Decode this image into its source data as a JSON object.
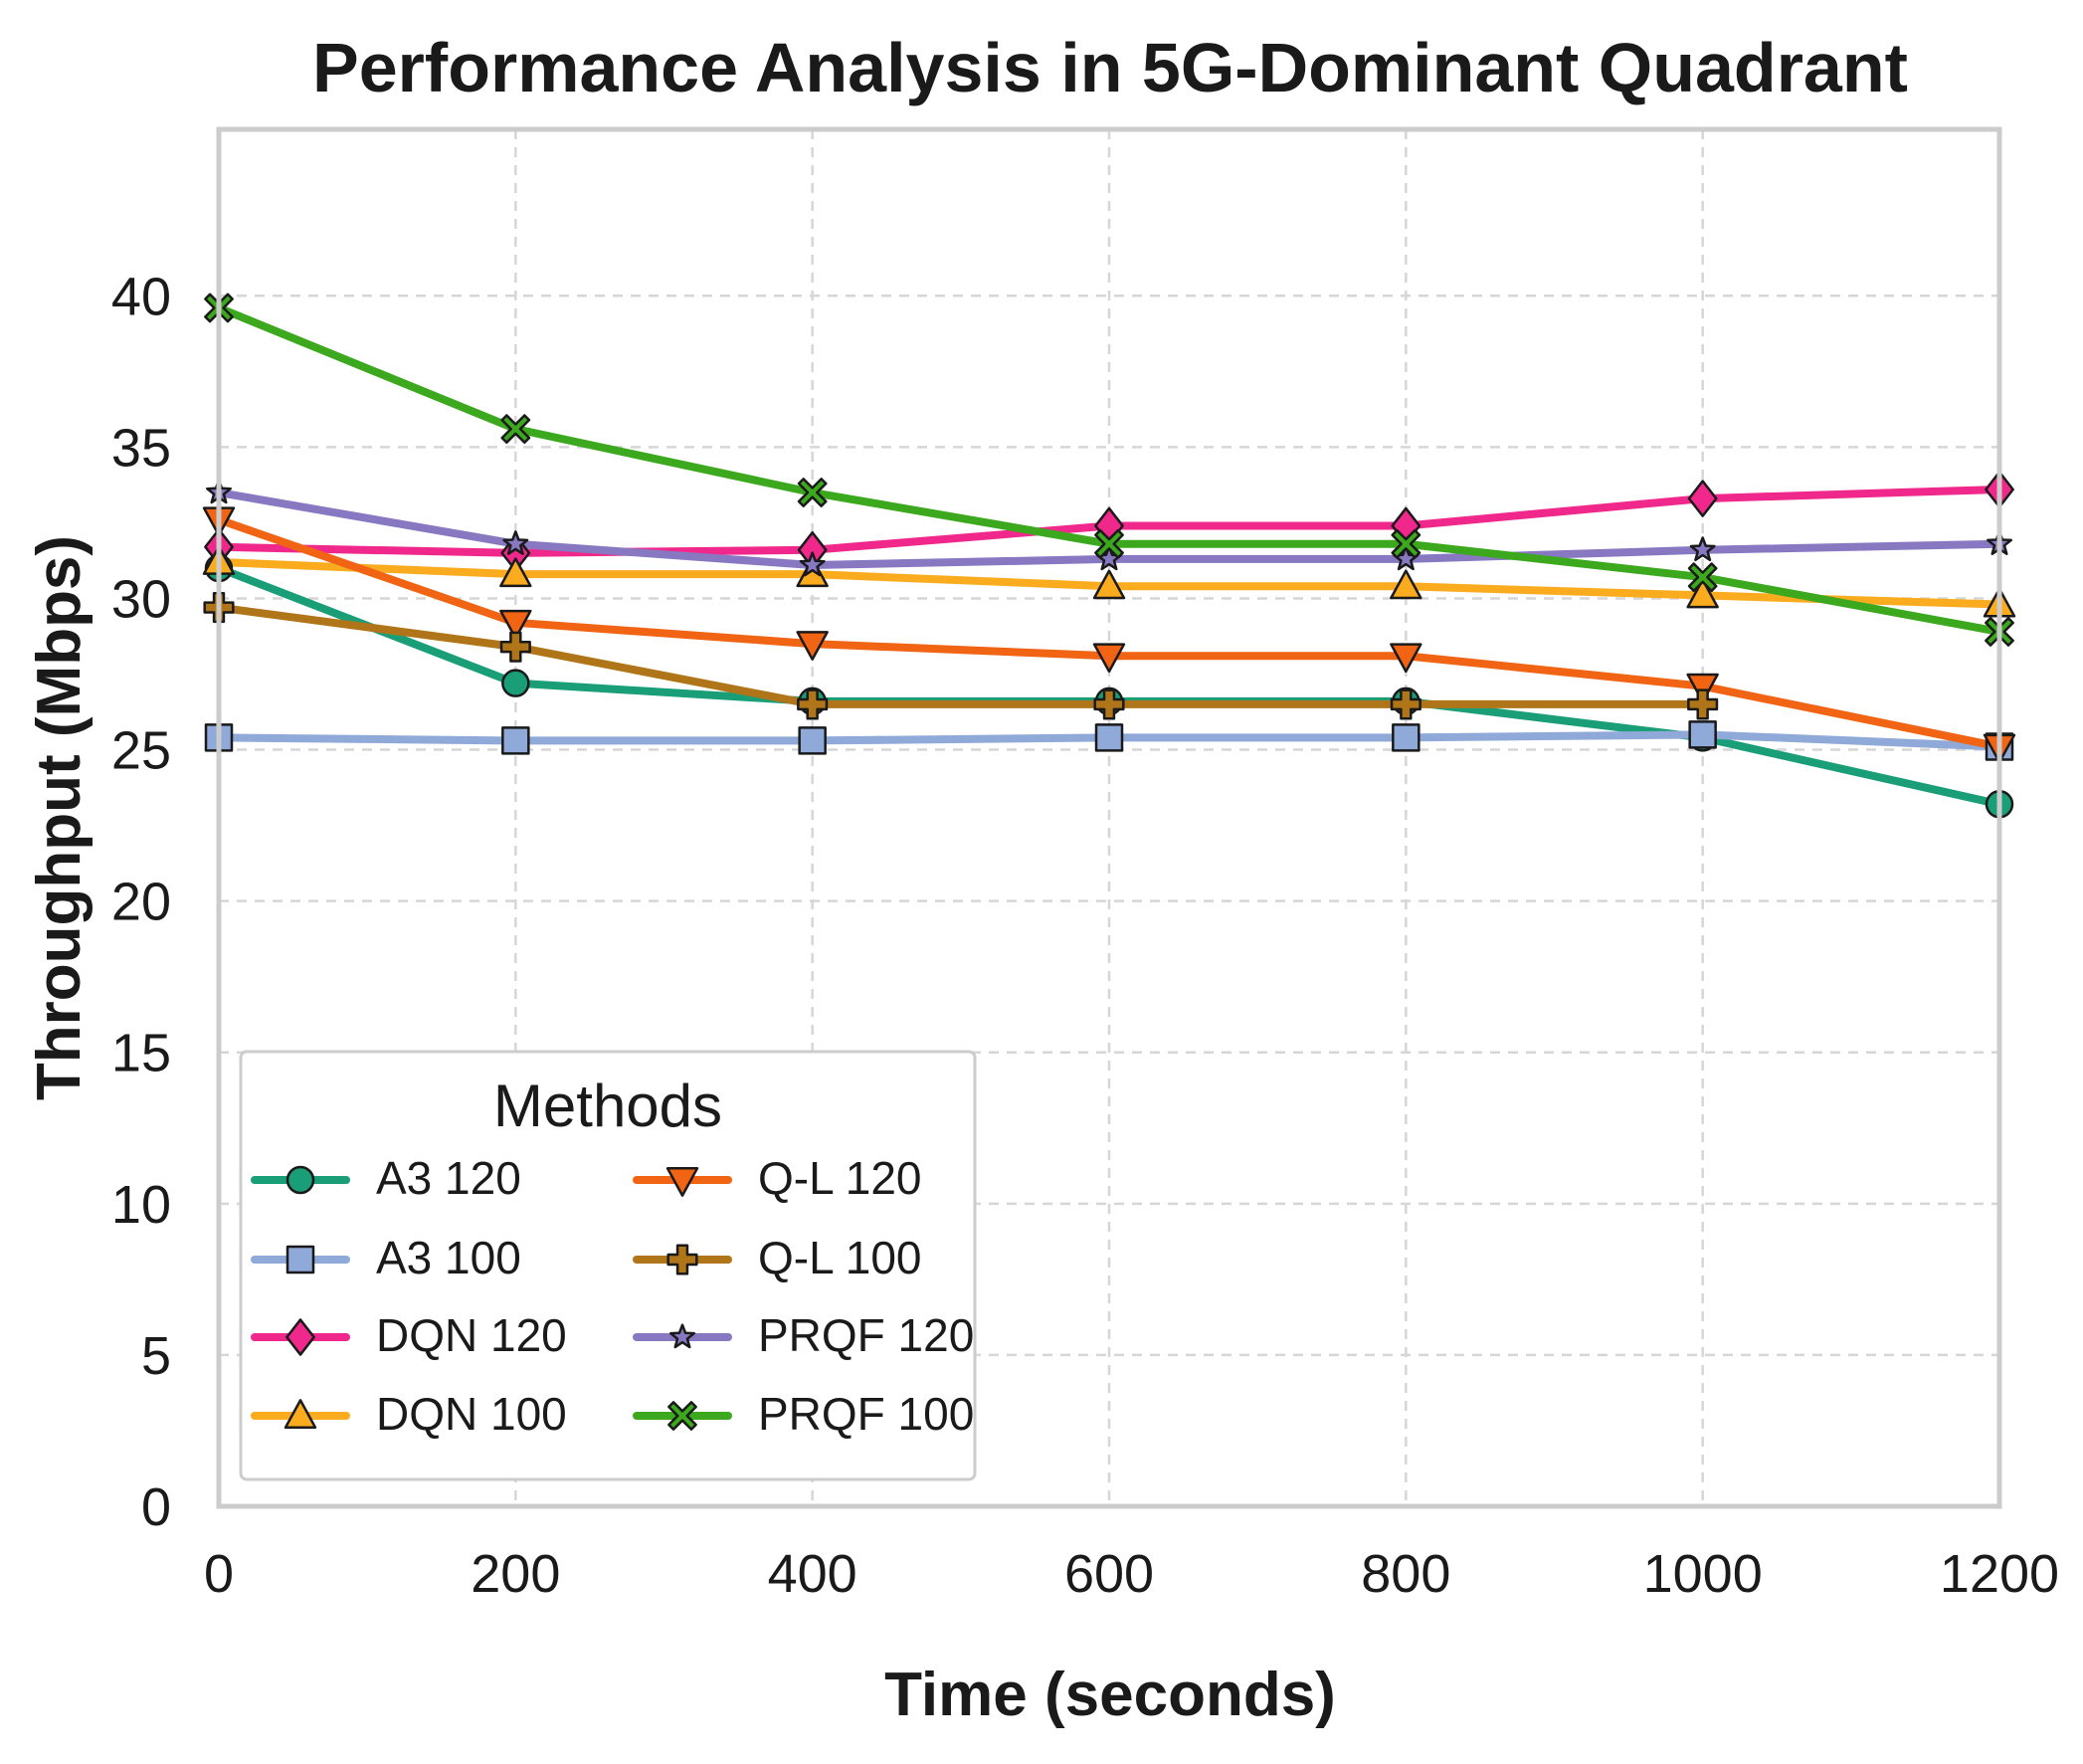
{
  "chart_data": {
    "type": "line",
    "title": "Performance Analysis in 5G-Dominant Quadrant",
    "xlabel": "Time (seconds)",
    "ylabel": "Throughput (Mbps)",
    "x": [
      0,
      200,
      400,
      600,
      800,
      1000,
      1200
    ],
    "x_ticks": [
      "0",
      "200",
      "400",
      "600",
      "800",
      "1000",
      "1200"
    ],
    "y_ticks": [
      "0",
      "5",
      "10",
      "15",
      "20",
      "25",
      "30",
      "35",
      "40"
    ],
    "xlim": [
      0,
      1200
    ],
    "ylim": [
      0,
      45.5
    ],
    "grid": true,
    "legend": {
      "title": "Methods",
      "placement": "lower-left",
      "columns": 2
    },
    "series": [
      {
        "name": "A3 120",
        "color": "#1a9e77",
        "marker": "circle",
        "values": [
          31.0,
          27.2,
          26.6,
          26.6,
          26.6,
          25.4,
          23.2
        ]
      },
      {
        "name": "A3 100",
        "color": "#8fa9d8",
        "marker": "square",
        "values": [
          25.4,
          25.3,
          25.3,
          25.4,
          25.4,
          25.5,
          25.1
        ]
      },
      {
        "name": "DQN 120",
        "color": "#f0288c",
        "marker": "diamond",
        "values": [
          31.7,
          31.5,
          31.6,
          32.4,
          32.4,
          33.3,
          33.6
        ]
      },
      {
        "name": "DQN 100",
        "color": "#fbab1e",
        "marker": "triangle-up",
        "values": [
          31.2,
          30.8,
          30.8,
          30.4,
          30.4,
          30.1,
          29.8
        ]
      },
      {
        "name": "Q-L 120",
        "color": "#f06414",
        "marker": "triangle-down",
        "values": [
          32.6,
          29.2,
          28.5,
          28.1,
          28.1,
          27.1,
          25.1
        ]
      },
      {
        "name": "Q-L 100",
        "color": "#b07518",
        "marker": "plus",
        "values": [
          29.7,
          28.4,
          26.5,
          26.5,
          26.5,
          26.5,
          null
        ]
      },
      {
        "name": "PRQF 120",
        "color": "#8878c2",
        "marker": "star",
        "values": [
          33.5,
          31.8,
          31.1,
          31.3,
          31.3,
          31.6,
          31.8
        ]
      },
      {
        "name": "PRQF 100",
        "color": "#3ca81e",
        "marker": "x",
        "values": [
          39.6,
          35.6,
          33.5,
          31.8,
          31.8,
          30.7,
          28.9
        ]
      }
    ]
  }
}
